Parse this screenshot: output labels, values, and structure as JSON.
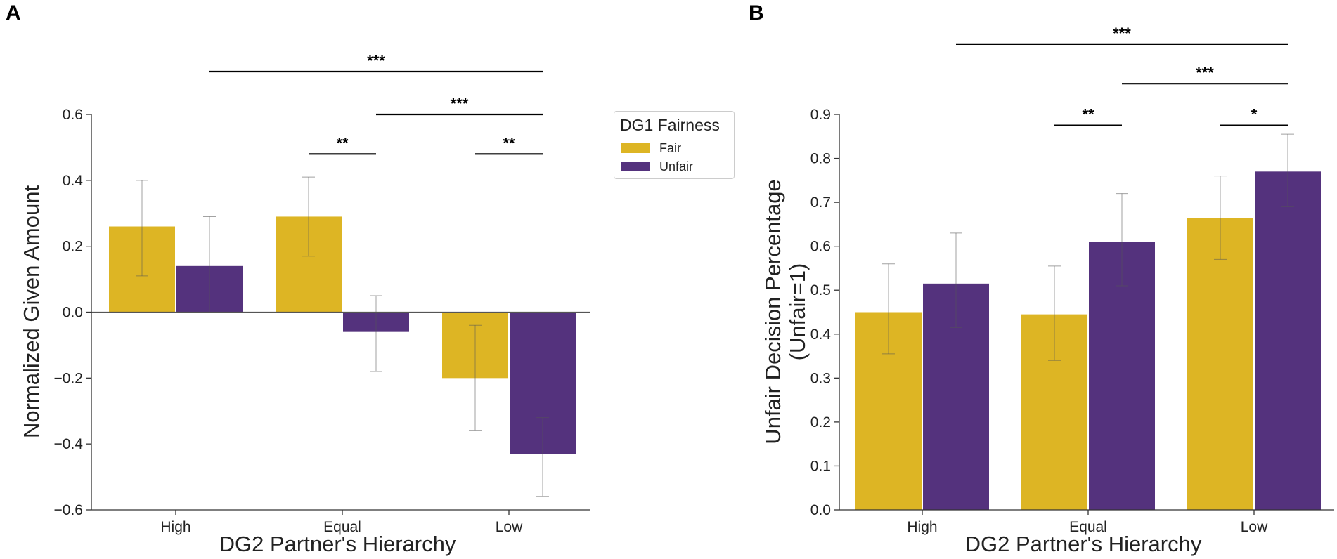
{
  "panels": {
    "a_label": "A",
    "b_label": "B"
  },
  "legend": {
    "title": "DG1 Fairness",
    "items": [
      {
        "label": "Fair",
        "color": "#DDB524"
      },
      {
        "label": "Unfair",
        "color": "#54327D"
      }
    ]
  },
  "chart_data": [
    {
      "type": "bar",
      "panel": "A",
      "categories": [
        "High",
        "Equal",
        "Low"
      ],
      "series": [
        {
          "name": "Fair",
          "color": "#DDB524",
          "values": [
            0.26,
            0.29,
            -0.2
          ],
          "err_low": [
            0.11,
            0.17,
            -0.36
          ],
          "err_high": [
            0.4,
            0.41,
            -0.04
          ]
        },
        {
          "name": "Unfair",
          "color": "#54327D",
          "values": [
            0.14,
            -0.06,
            -0.43
          ],
          "err_low": [
            0.0,
            -0.18,
            -0.56
          ],
          "err_high": [
            0.29,
            0.05,
            -0.32
          ]
        }
      ],
      "ylim": [
        -0.6,
        0.6
      ],
      "yticks": [
        -0.6,
        -0.4,
        -0.2,
        0.0,
        0.2,
        0.4,
        0.6
      ],
      "ytick_labels": [
        "−0.6",
        "−0.4",
        "−0.2",
        "0.0",
        "0.2",
        "0.4",
        "0.6"
      ],
      "xlabel": "DG2 Partner's Hierarchy",
      "ylabel": "Normalized Given Amount",
      "significance": [
        {
          "from": [
            0,
            1
          ],
          "to": [
            2,
            1
          ],
          "label": "***",
          "level": 0.73
        },
        {
          "from": [
            1,
            1
          ],
          "to": [
            2,
            1
          ],
          "label": "***",
          "level": 0.6
        },
        {
          "from": [
            1,
            0
          ],
          "to": [
            1,
            1
          ],
          "label": "**",
          "level": 0.48
        },
        {
          "from": [
            2,
            0
          ],
          "to": [
            2,
            1
          ],
          "label": "**",
          "level": 0.48
        }
      ]
    },
    {
      "type": "bar",
      "panel": "B",
      "categories": [
        "High",
        "Equal",
        "Low"
      ],
      "series": [
        {
          "name": "Fair",
          "color": "#DDB524",
          "values": [
            0.45,
            0.445,
            0.665
          ],
          "err_low": [
            0.355,
            0.34,
            0.57
          ],
          "err_high": [
            0.56,
            0.555,
            0.76
          ]
        },
        {
          "name": "Unfair",
          "color": "#54327D",
          "values": [
            0.515,
            0.61,
            0.77
          ],
          "err_low": [
            0.415,
            0.51,
            0.69
          ],
          "err_high": [
            0.63,
            0.72,
            0.855
          ]
        }
      ],
      "ylim": [
        0.0,
        0.9
      ],
      "yticks": [
        0.0,
        0.1,
        0.2,
        0.3,
        0.4,
        0.5,
        0.6,
        0.7,
        0.8,
        0.9
      ],
      "ytick_labels": [
        "0.0",
        "0.1",
        "0.2",
        "0.3",
        "0.4",
        "0.5",
        "0.6",
        "0.7",
        "0.8",
        "0.9"
      ],
      "xlabel": "DG2 Partner's Hierarchy",
      "ylabel": "Unfair Decision Percentage",
      "ylabel2": "(Unfair=1)",
      "significance": [
        {
          "from": [
            0,
            1
          ],
          "to": [
            2,
            1
          ],
          "label": "***",
          "level": 1.06
        },
        {
          "from": [
            1,
            1
          ],
          "to": [
            2,
            1
          ],
          "label": "***",
          "level": 0.97
        },
        {
          "from": [
            1,
            0
          ],
          "to": [
            1,
            1
          ],
          "label": "**",
          "level": 0.875
        },
        {
          "from": [
            2,
            0
          ],
          "to": [
            2,
            1
          ],
          "label": "*",
          "level": 0.875
        }
      ]
    }
  ]
}
